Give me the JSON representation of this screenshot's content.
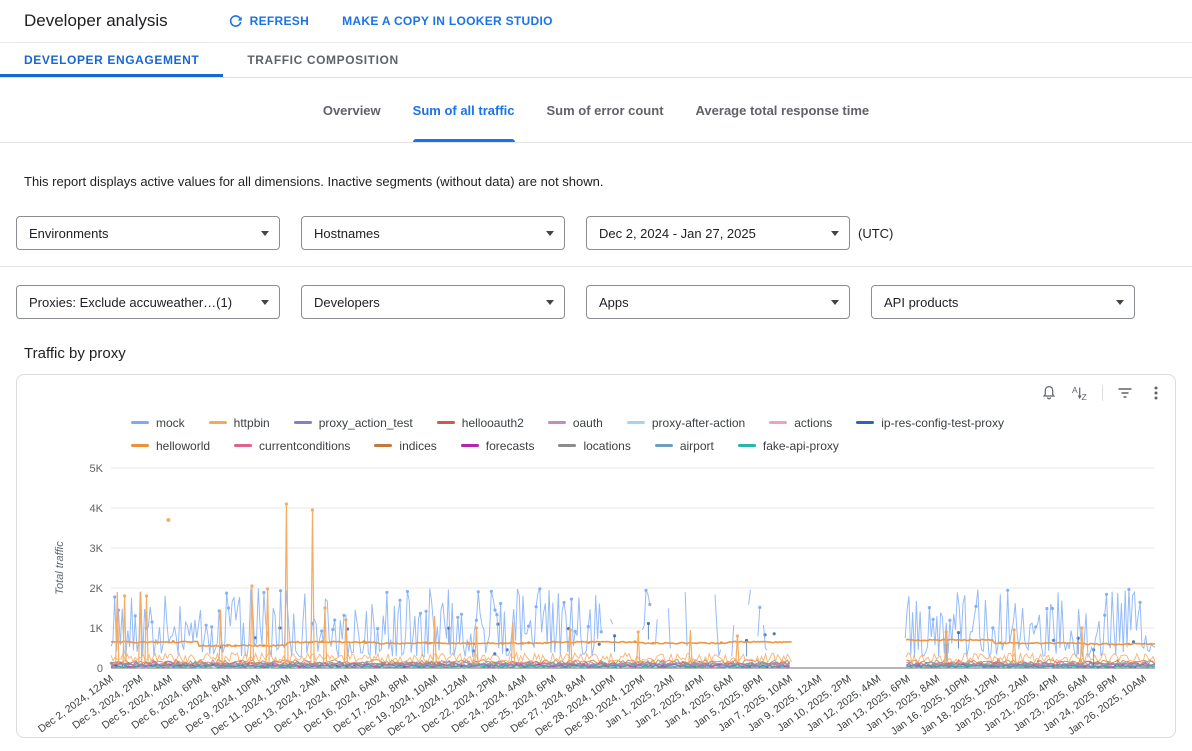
{
  "header": {
    "title": "Developer analysis",
    "refresh_label": "REFRESH",
    "copy_label": "MAKE A COPY IN LOOKER STUDIO"
  },
  "tabs": [
    {
      "label": "DEVELOPER ENGAGEMENT",
      "active": true
    },
    {
      "label": "TRAFFIC COMPOSITION",
      "active": false
    }
  ],
  "subtabs": [
    {
      "label": "Overview",
      "active": false
    },
    {
      "label": "Sum of all traffic",
      "active": true
    },
    {
      "label": "Sum of error count",
      "active": false
    },
    {
      "label": "Average total response time",
      "active": false
    }
  ],
  "notice": "This report displays active values for all dimensions. Inactive segments (without data) are not shown.",
  "filters": {
    "row1": [
      "Environments",
      "Hostnames",
      "Dec 2, 2024 - Jan 27, 2025"
    ],
    "timezone": "(UTC)",
    "row2": [
      "Proxies: Exclude accuweather…(1)",
      "Developers",
      "Apps",
      "API products"
    ]
  },
  "section_title": "Traffic by proxy",
  "card_toolbar_icons": [
    "alert-bell",
    "sort-alpha",
    "filter",
    "more-vert"
  ],
  "chart_data": {
    "type": "line",
    "title": "Traffic by proxy",
    "ylabel": "Total traffic",
    "ylim": [
      0,
      5000
    ],
    "grid": true,
    "legend_position": "top",
    "y_ticks": [
      {
        "v": 0,
        "label": "0"
      },
      {
        "v": 1000,
        "label": "1K"
      },
      {
        "v": 2000,
        "label": "2K"
      },
      {
        "v": 3000,
        "label": "3K"
      },
      {
        "v": 4000,
        "label": "4K"
      },
      {
        "v": 5000,
        "label": "5K"
      }
    ],
    "x_range": [
      "Dec 2, 2024, 12AM",
      "Jan 27, 2025"
    ],
    "x_tick_labels": [
      "Dec 2, 2024, 12AM",
      "Dec 3, 2024, 2PM",
      "Dec 5, 2024, 4AM",
      "Dec 6, 2024, 6PM",
      "Dec 8, 2024, 8AM",
      "Dec 9, 2024, 10PM",
      "Dec 11, 2024, 12PM",
      "Dec 13, 2024, 2AM",
      "Dec 14, 2024, 4PM",
      "Dec 16, 2024, 6AM",
      "Dec 17, 2024, 8PM",
      "Dec 19, 2024, 10AM",
      "Dec 21, 2024, 12AM",
      "Dec 22, 2024, 2PM",
      "Dec 24, 2024, 4AM",
      "Dec 25, 2024, 6PM",
      "Dec 27, 2024, 8AM",
      "Dec 28, 2024, 10PM",
      "Dec 30, 2024, 12PM",
      "Jan 1, 2025, 2AM",
      "Jan 2, 2025, 4PM",
      "Jan 4, 2025, 6AM",
      "Jan 5, 2025, 8PM",
      "Jan 7, 2025, 10AM",
      "Jan 9, 2025, 12AM",
      "Jan 10, 2025, 2PM",
      "Jan 12, 2025, 4AM",
      "Jan 13, 2025, 6PM",
      "Jan 15, 2025, 8AM",
      "Jan 16, 2025, 10PM",
      "Jan 18, 2025, 12PM",
      "Jan 20, 2025, 2AM",
      "Jan 21, 2025, 4PM",
      "Jan 23, 2025, 6AM",
      "Jan 24, 2025, 8PM",
      "Jan 26, 2025, 10AM"
    ],
    "x_tick_end_frac": 0.9896,
    "data_gap_frac": [
      0.652,
      0.76
    ],
    "data_gap_note": "no data roughly Jan 7 - Jan 14, 2025",
    "seed": 7,
    "series": [
      {
        "name": "mock",
        "color": "#7baaf7",
        "row": 0,
        "z": 3,
        "kind": "noisy",
        "base": 280,
        "amp": 1720,
        "pow": 1.7,
        "max": 2050,
        "sparse": [
          0.47,
          0.652
        ]
      },
      {
        "name": "httpbin",
        "color": "#f6a85c",
        "row": 0,
        "z": 5,
        "kind": "spiky",
        "base": 120,
        "amp": 260,
        "spikes": [
          {
            "f": 0.006,
            "v": 1900
          },
          {
            "f": 0.013,
            "v": 1800
          },
          {
            "f": 0.028,
            "v": 1900
          },
          {
            "f": 0.034,
            "v": 1800
          },
          {
            "f": 0.055,
            "v": 3700,
            "dot": true
          },
          {
            "f": 0.105,
            "v": 1450
          },
          {
            "f": 0.135,
            "v": 2050
          },
          {
            "f": 0.15,
            "v": 1980
          },
          {
            "f": 0.168,
            "v": 4100
          },
          {
            "f": 0.193,
            "v": 3950
          },
          {
            "f": 0.205,
            "v": 1500
          },
          {
            "f": 0.225,
            "v": 1200
          },
          {
            "f": 0.31,
            "v": 1300
          },
          {
            "f": 0.35,
            "v": 1000
          },
          {
            "f": 0.385,
            "v": 1150
          },
          {
            "f": 0.44,
            "v": 950
          },
          {
            "f": 0.505,
            "v": 900
          },
          {
            "f": 0.555,
            "v": 950
          },
          {
            "f": 0.6,
            "v": 800
          },
          {
            "f": 0.8,
            "v": 900
          },
          {
            "f": 0.865,
            "v": 950
          },
          {
            "f": 0.93,
            "v": 1000
          }
        ]
      },
      {
        "name": "proxy_action_test",
        "color": "#8e7cc3",
        "row": 0,
        "z": 1,
        "kind": "low",
        "base": 40,
        "amp": 60
      },
      {
        "name": "hellooauth2",
        "color": "#c4604a",
        "row": 0,
        "z": 1,
        "kind": "low",
        "base": 95,
        "amp": 90
      },
      {
        "name": "oauth",
        "color": "#c58bc0",
        "row": 0,
        "z": 1,
        "kind": "low",
        "base": 70,
        "amp": 80
      },
      {
        "name": "proxy-after-action",
        "color": "#9fd5f5",
        "row": 0,
        "z": 1,
        "kind": "low",
        "base": 28,
        "amp": 40
      },
      {
        "name": "actions",
        "color": "#f0a1c2",
        "row": 0,
        "z": 1,
        "kind": "low",
        "base": 50,
        "amp": 64
      },
      {
        "name": "ip-res-config-test-proxy",
        "color": "#3263ad",
        "row": 0,
        "z": 2,
        "kind": "dots",
        "base": 350,
        "amp": 800
      },
      {
        "name": "helloworld",
        "color": "#ed9036",
        "row": 1,
        "z": 4,
        "kind": "flat",
        "levels": [
          560,
          600,
          620,
          620,
          650,
          700
        ]
      },
      {
        "name": "currentconditions",
        "color": "#e0638f",
        "row": 1,
        "z": 1,
        "kind": "low",
        "base": 120,
        "amp": 110
      },
      {
        "name": "indices",
        "color": "#c07b3a",
        "row": 1,
        "z": 1,
        "kind": "low",
        "base": 150,
        "amp": 120
      },
      {
        "name": "forecasts",
        "color": "#b525ae",
        "row": 1,
        "z": 1,
        "kind": "low",
        "base": 55,
        "amp": 70
      },
      {
        "name": "locations",
        "color": "#8d8d8d",
        "row": 1,
        "z": 1,
        "kind": "low",
        "base": 85,
        "amp": 80
      },
      {
        "name": "airport",
        "color": "#6f9fc0",
        "row": 1,
        "z": 1,
        "kind": "low",
        "base": 100,
        "amp": 100
      },
      {
        "name": "fake-api-proxy",
        "color": "#27b5ad",
        "row": 1,
        "z": 1,
        "kind": "low",
        "base": 40,
        "amp": 55
      }
    ]
  }
}
